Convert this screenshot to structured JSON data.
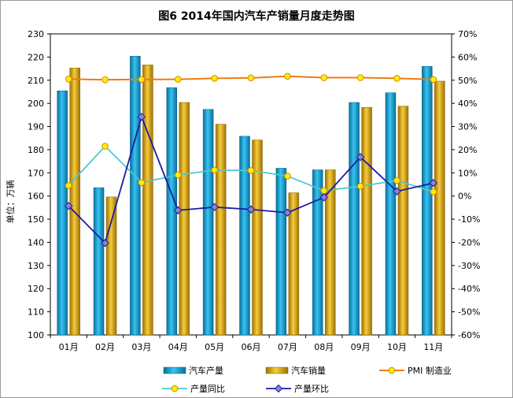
{
  "chart_data": {
    "type": "bar",
    "title": "图6  2014年国内汽车产销量月度走势图",
    "ylabel": "单位：万辆",
    "categories": [
      "01月",
      "02月",
      "03月",
      "04月",
      "05月",
      "06月",
      "07月",
      "08月",
      "09月",
      "10月",
      "11月"
    ],
    "y_left": {
      "min": 100,
      "max": 230,
      "step": 10
    },
    "y_right": {
      "min": -60,
      "max": 70,
      "step": 10,
      "unit": "%"
    },
    "series": [
      {
        "name": "汽车产量",
        "kind": "bar",
        "axis": "left",
        "values": [
          205.4,
          163.6,
          220.4,
          206.8,
          197.4,
          185.8,
          172.0,
          171.3,
          200.4,
          204.6,
          216.0
        ]
      },
      {
        "name": "汽车销量",
        "kind": "bar",
        "axis": "left",
        "values": [
          215.3,
          159.6,
          216.6,
          200.4,
          191.0,
          184.2,
          161.4,
          171.3,
          198.3,
          198.8,
          209.6
        ]
      },
      {
        "name": "PMI 制造业",
        "kind": "line",
        "axis": "right",
        "values": [
          50.5,
          50.2,
          50.3,
          50.4,
          50.8,
          51.0,
          51.7,
          51.1,
          51.1,
          50.8,
          50.3
        ]
      },
      {
        "name": "产量同比",
        "kind": "line",
        "axis": "right",
        "values": [
          4.5,
          21.5,
          5.8,
          9.1,
          11.2,
          11.0,
          8.6,
          2.3,
          4.2,
          6.7,
          1.8
        ]
      },
      {
        "name": "产量环比",
        "kind": "line",
        "axis": "right",
        "values": [
          -4.3,
          -20.3,
          34.2,
          -6.2,
          -4.8,
          -5.8,
          -7.2,
          -0.6,
          16.8,
          2.0,
          5.6
        ]
      }
    ],
    "colors": {
      "production": "#1aa7d8",
      "sales": "#e2ac14",
      "pmi": "#f07a12",
      "yoy": "#4cc9d2",
      "mom": "#1c1ca0"
    },
    "legend": "bottom",
    "grid": false
  }
}
